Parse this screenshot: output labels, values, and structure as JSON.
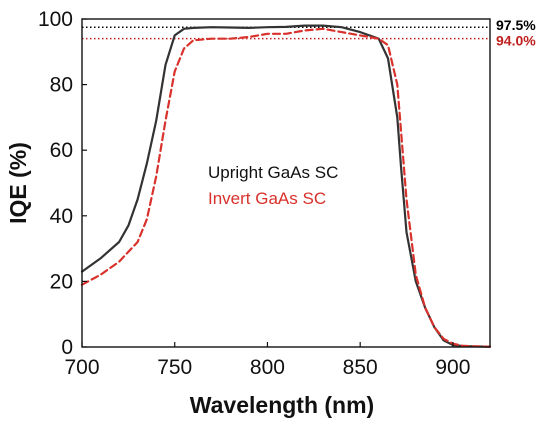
{
  "chart_data": {
    "type": "line",
    "xlabel": "Wavelength (nm)",
    "ylabel": "IQE (%)",
    "xlim": [
      700,
      920
    ],
    "ylim": [
      0,
      100
    ],
    "xticks": [
      700,
      750,
      800,
      850,
      900
    ],
    "yticks": [
      0,
      20,
      40,
      60,
      80,
      100
    ],
    "grid": false,
    "legend_position": "center",
    "reference_lines": [
      {
        "value": 97.5,
        "label": "97.5%",
        "color": "#000000",
        "style": "dotted"
      },
      {
        "value": 94.0,
        "label": "94.0%",
        "color": "#c0201f",
        "style": "dotted"
      }
    ],
    "series": [
      {
        "name": "Upright GaAs SC",
        "color": "#333333",
        "dash": "solid",
        "x": [
          700,
          710,
          720,
          725,
          730,
          735,
          740,
          745,
          750,
          755,
          760,
          770,
          780,
          790,
          800,
          810,
          820,
          830,
          840,
          850,
          860,
          865,
          870,
          872,
          875,
          880,
          885,
          890,
          895,
          900,
          905,
          910,
          920
        ],
        "y": [
          23,
          27,
          32,
          37,
          45,
          56,
          69,
          86,
          95,
          97,
          97.3,
          97.5,
          97.4,
          97.3,
          97.5,
          97.6,
          98,
          98,
          97.5,
          96,
          94,
          88,
          70,
          55,
          35,
          20,
          12,
          6,
          2,
          0.6,
          0.3,
          0.2,
          0.1
        ]
      },
      {
        "name": "Invert GaAs SC",
        "color": "#d9312b",
        "dash": "dashed",
        "x": [
          700,
          710,
          720,
          730,
          735,
          740,
          745,
          750,
          755,
          760,
          770,
          780,
          790,
          800,
          810,
          820,
          830,
          840,
          850,
          860,
          865,
          870,
          875,
          880,
          885,
          890,
          895,
          900,
          905,
          910,
          920
        ],
        "y": [
          19,
          22,
          26,
          32,
          39,
          52,
          69,
          84,
          91,
          93.5,
          94,
          94,
          94.5,
          95.5,
          95.5,
          96.5,
          97,
          96,
          95,
          94,
          92,
          80,
          45,
          22,
          12,
          6,
          2.5,
          1,
          0.4,
          0.2,
          0.1
        ]
      }
    ]
  }
}
